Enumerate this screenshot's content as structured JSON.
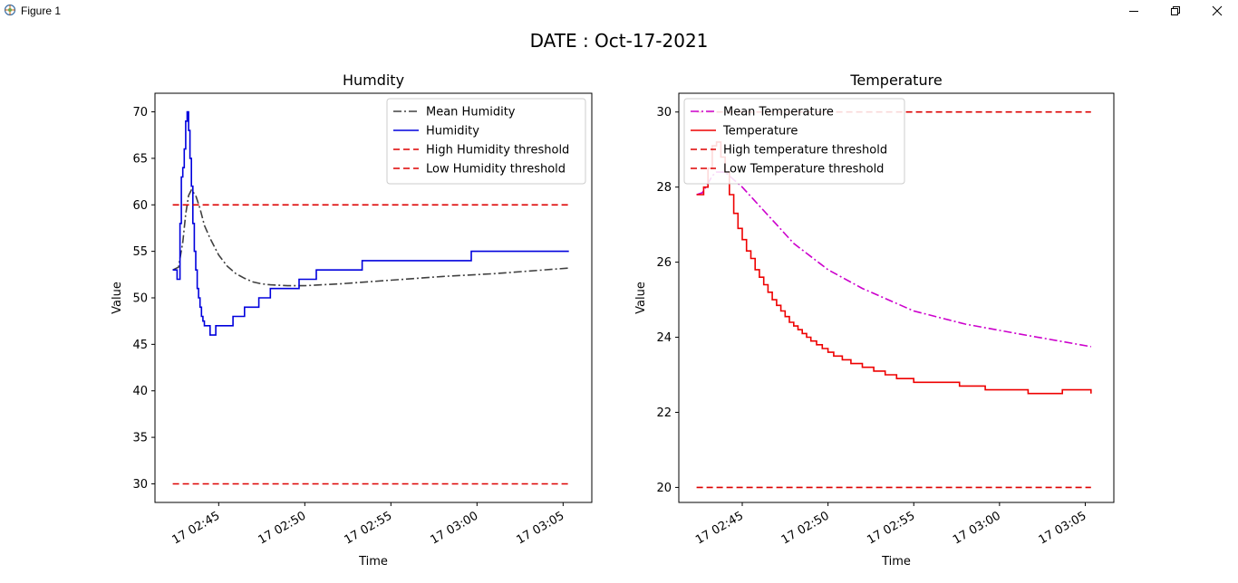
{
  "window": {
    "title": "Figure 1",
    "icons": [
      "app-icon",
      "minimize-icon",
      "restore-icon",
      "close-icon"
    ]
  },
  "figure": {
    "suptitle": "DATE : Oct-17-2021"
  },
  "chart_data": [
    {
      "type": "line",
      "title": "Humdity",
      "xlabel": "Time",
      "ylabel": "Value",
      "x_is_time": true,
      "xlim": [
        "02:41:18",
        "03:06:40"
      ],
      "ylim": [
        28,
        72
      ],
      "yticks": [
        30,
        35,
        40,
        45,
        50,
        55,
        60,
        65,
        70
      ],
      "xticks": [
        "02:45",
        "02:50",
        "02:55",
        "03:00",
        "03:05"
      ],
      "xtick_labels": [
        "17 02:45",
        "17 02:50",
        "17 02:55",
        "17 03:00",
        "17 03:05"
      ],
      "legend_position": "top-right",
      "series": [
        {
          "name": "Mean Humidity",
          "color": "#404040",
          "style": "dashdot",
          "step": false,
          "x": [
            "02:42:20",
            "02:42:40",
            "02:42:55",
            "02:43:05",
            "02:43:15",
            "02:43:25",
            "02:43:40",
            "02:43:55",
            "02:44:10",
            "02:44:30",
            "02:45:00",
            "02:45:30",
            "02:46:00",
            "02:46:30",
            "02:47:00",
            "02:47:30",
            "02:48:00",
            "02:49:00",
            "02:50:00",
            "02:52:00",
            "02:55:00",
            "02:58:00",
            "03:01:00",
            "03:05:20"
          ],
          "y": [
            53,
            53.3,
            56,
            59,
            61,
            61.6,
            61,
            59.6,
            57.8,
            56.4,
            54.6,
            53.4,
            52.6,
            52.1,
            51.7,
            51.5,
            51.4,
            51.3,
            51.3,
            51.5,
            51.9,
            52.3,
            52.6,
            53.2
          ]
        },
        {
          "name": "Humidity",
          "color": "#0000dd",
          "style": "solid",
          "step": true,
          "x": [
            "02:42:20",
            "02:42:35",
            "02:42:45",
            "02:42:50",
            "02:42:55",
            "02:43:00",
            "02:43:05",
            "02:43:10",
            "02:43:15",
            "02:43:20",
            "02:43:25",
            "02:43:30",
            "02:43:35",
            "02:43:40",
            "02:43:45",
            "02:43:50",
            "02:43:55",
            "02:44:00",
            "02:44:05",
            "02:44:10",
            "02:44:30",
            "02:44:50",
            "02:45:50",
            "02:46:30",
            "02:47:20",
            "02:48:00",
            "02:49:40",
            "02:50:40",
            "02:53:20",
            "02:59:40",
            "03:05:20"
          ],
          "y": [
            53,
            52,
            58,
            63,
            64,
            66,
            69,
            70,
            68,
            65,
            62,
            58,
            55,
            53,
            51,
            50,
            49,
            48,
            47.5,
            47,
            46,
            47,
            48,
            49,
            50,
            51,
            52,
            53,
            54,
            55,
            55
          ]
        },
        {
          "name": "High Humidity threshold",
          "color": "#dd0000",
          "style": "dashed",
          "step": false,
          "x": [
            "02:42:20",
            "03:05:20"
          ],
          "y": [
            60,
            60
          ]
        },
        {
          "name": "Low Humidity threshold",
          "color": "#dd0000",
          "style": "dashed",
          "step": false,
          "x": [
            "02:42:20",
            "03:05:20"
          ],
          "y": [
            30,
            30
          ]
        }
      ]
    },
    {
      "type": "line",
      "title": "Temperature",
      "xlabel": "Time",
      "ylabel": "Value",
      "x_is_time": true,
      "xlim": [
        "02:41:18",
        "03:06:40"
      ],
      "ylim": [
        19.6,
        30.5
      ],
      "yticks": [
        20,
        22,
        24,
        26,
        28,
        30
      ],
      "xticks": [
        "02:45",
        "02:50",
        "02:55",
        "03:00",
        "03:05"
      ],
      "xtick_labels": [
        "17 02:45",
        "17 02:50",
        "17 02:55",
        "17 03:00",
        "17 03:05"
      ],
      "legend_position": "top-left",
      "series": [
        {
          "name": "Mean Temperature",
          "color": "#cc00cc",
          "style": "dashdot",
          "step": false,
          "x": [
            "02:42:20",
            "02:42:40",
            "02:43:00",
            "02:43:15",
            "02:43:30",
            "02:44:00",
            "02:45:00",
            "02:46:00",
            "02:47:00",
            "02:48:00",
            "02:50:00",
            "02:52:00",
            "02:55:00",
            "02:58:00",
            "03:01:00",
            "03:05:20"
          ],
          "y": [
            27.8,
            27.85,
            28.1,
            28.3,
            28.4,
            28.4,
            28.0,
            27.5,
            27.0,
            26.5,
            25.8,
            25.3,
            24.7,
            24.35,
            24.1,
            23.75
          ]
        },
        {
          "name": "Temperature",
          "color": "#ee0000",
          "style": "solid",
          "step": true,
          "x": [
            "02:42:20",
            "02:42:45",
            "02:43:00",
            "02:43:15",
            "02:43:30",
            "02:43:45",
            "02:44:00",
            "02:44:15",
            "02:44:30",
            "02:44:45",
            "02:45:00",
            "02:45:15",
            "02:45:30",
            "02:45:45",
            "02:46:00",
            "02:46:15",
            "02:46:30",
            "02:46:45",
            "02:47:00",
            "02:47:15",
            "02:47:30",
            "02:47:45",
            "02:48:00",
            "02:48:15",
            "02:48:30",
            "02:48:45",
            "02:49:00",
            "02:49:20",
            "02:49:40",
            "02:50:00",
            "02:50:20",
            "02:50:50",
            "02:51:20",
            "02:52:00",
            "02:52:40",
            "02:53:20",
            "02:54:00",
            "02:55:00",
            "02:56:10",
            "02:57:40",
            "02:59:10",
            "03:00:20",
            "03:01:40",
            "03:03:40",
            "03:05:20"
          ],
          "y": [
            27.8,
            28.0,
            28.5,
            29.1,
            29.2,
            28.8,
            28.4,
            27.8,
            27.3,
            26.9,
            26.6,
            26.3,
            26.1,
            25.8,
            25.6,
            25.4,
            25.2,
            25.0,
            24.85,
            24.7,
            24.55,
            24.4,
            24.3,
            24.2,
            24.1,
            24.0,
            23.9,
            23.8,
            23.7,
            23.6,
            23.5,
            23.4,
            23.3,
            23.2,
            23.1,
            23.0,
            22.9,
            22.8,
            22.8,
            22.7,
            22.6,
            22.6,
            22.5,
            22.6,
            22.5
          ]
        },
        {
          "name": "High temperature threshold",
          "color": "#dd0000",
          "style": "dashed",
          "step": false,
          "x": [
            "02:42:20",
            "03:05:20"
          ],
          "y": [
            30,
            30
          ]
        },
        {
          "name": "Low Temperature threshold",
          "color": "#dd0000",
          "style": "dashed",
          "step": false,
          "x": [
            "02:42:20",
            "03:05:20"
          ],
          "y": [
            20,
            20
          ]
        }
      ]
    }
  ]
}
